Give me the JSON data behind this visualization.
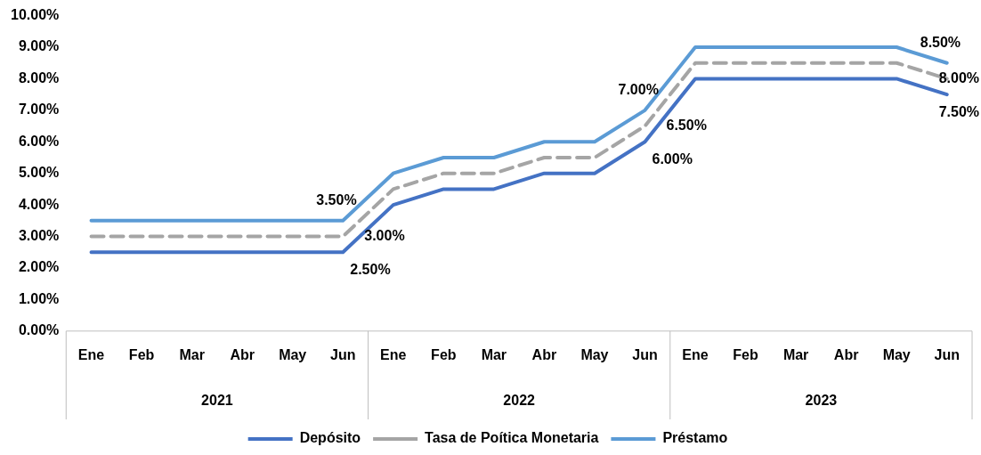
{
  "chart_data": {
    "type": "line",
    "categories": [
      "Ene",
      "Feb",
      "Mar",
      "Abr",
      "May",
      "Jun",
      "Ene",
      "Feb",
      "Mar",
      "Abr",
      "May",
      "Jun",
      "Ene",
      "Feb",
      "Mar",
      "Abr",
      "May",
      "Jun"
    ],
    "annotations": [
      "2021",
      "2022",
      "2023"
    ],
    "ylim": [
      0,
      10
    ],
    "yticks": [
      {
        "value": 0,
        "label": "0.00%"
      },
      {
        "value": 1,
        "label": "1.00%"
      },
      {
        "value": 2,
        "label": "2.00%"
      },
      {
        "value": 3,
        "label": "3.00%"
      },
      {
        "value": 4,
        "label": "4.00%"
      },
      {
        "value": 5,
        "label": "5.00%"
      },
      {
        "value": 6,
        "label": "6.00%"
      },
      {
        "value": 7,
        "label": "7.00%"
      },
      {
        "value": 8,
        "label": "8.00%"
      },
      {
        "value": 9,
        "label": "9.00%"
      },
      {
        "value": 10,
        "label": "10.00%"
      }
    ],
    "grid": false,
    "legend": "bottom",
    "marker": "none",
    "series": [
      {
        "name": "Depósito",
        "color": "#4472c4",
        "line_style": "solid",
        "values": [
          2.5,
          2.5,
          2.5,
          2.5,
          2.5,
          2.5,
          4.0,
          4.5,
          4.5,
          5.0,
          5.0,
          6.0,
          8.0,
          8.0,
          8.0,
          8.0,
          8.0,
          7.5
        ],
        "value_labels": [
          null,
          null,
          null,
          null,
          null,
          "2.50%",
          null,
          null,
          null,
          null,
          null,
          "6.00%",
          null,
          null,
          null,
          null,
          null,
          "7.50%"
        ]
      },
      {
        "name": "Tasa de Poítica Monetaria",
        "color": "#a5a5a5",
        "line_style": "dashed",
        "values": [
          3.0,
          3.0,
          3.0,
          3.0,
          3.0,
          3.0,
          4.5,
          5.0,
          5.0,
          5.5,
          5.5,
          6.5,
          8.5,
          8.5,
          8.5,
          8.5,
          8.5,
          8.0
        ],
        "value_labels": [
          null,
          null,
          null,
          null,
          null,
          "3.00%",
          null,
          null,
          null,
          null,
          null,
          "6.50%",
          null,
          null,
          null,
          null,
          null,
          "8.00%"
        ]
      },
      {
        "name": "Préstamo",
        "color": "#5b9bd5",
        "line_style": "solid",
        "values": [
          3.5,
          3.5,
          3.5,
          3.5,
          3.5,
          3.5,
          5.0,
          5.5,
          5.5,
          6.0,
          6.0,
          7.0,
          9.0,
          9.0,
          9.0,
          9.0,
          9.0,
          8.5
        ],
        "value_labels": [
          null,
          null,
          null,
          null,
          null,
          "3.50%",
          null,
          null,
          null,
          null,
          null,
          "7.00%",
          null,
          null,
          null,
          null,
          null,
          "8.50%"
        ]
      }
    ]
  }
}
